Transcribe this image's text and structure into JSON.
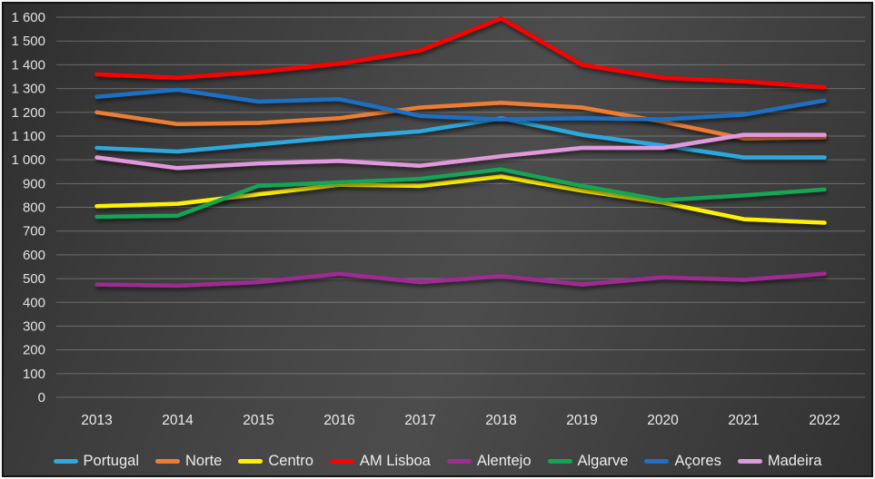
{
  "chart_data": {
    "type": "line",
    "title": "",
    "xlabel": "",
    "ylabel": "",
    "categories": [
      "2013",
      "2014",
      "2015",
      "2016",
      "2017",
      "2018",
      "2019",
      "2020",
      "2021",
      "2022"
    ],
    "series": [
      {
        "name": "Portugal",
        "color": "#2BA9E0",
        "values": [
          1050,
          1035,
          1065,
          1095,
          1120,
          1175,
          1105,
          1060,
          1010,
          1010
        ]
      },
      {
        "name": "Norte",
        "color": "#ED7D31",
        "values": [
          1200,
          1150,
          1155,
          1175,
          1220,
          1240,
          1220,
          1160,
          1090,
          1095
        ]
      },
      {
        "name": "Centro",
        "color": "#FFF100",
        "values": [
          805,
          815,
          855,
          895,
          890,
          930,
          870,
          820,
          750,
          735
        ]
      },
      {
        "name": "AM Lisboa",
        "color": "#FE0000",
        "values": [
          1360,
          1345,
          1370,
          1405,
          1460,
          1595,
          1400,
          1345,
          1330,
          1305
        ]
      },
      {
        "name": "Alentejo",
        "color": "#A02B93",
        "values": [
          475,
          470,
          485,
          520,
          485,
          510,
          475,
          505,
          495,
          520
        ]
      },
      {
        "name": "Algarve",
        "color": "#12A455",
        "values": [
          760,
          765,
          890,
          905,
          920,
          960,
          890,
          830,
          850,
          875
        ]
      },
      {
        "name": "Açores",
        "color": "#1F6FC4",
        "values": [
          1265,
          1295,
          1245,
          1255,
          1185,
          1170,
          1175,
          1170,
          1190,
          1250
        ]
      },
      {
        "name": "Madeira",
        "color": "#E298DC",
        "values": [
          1010,
          965,
          985,
          995,
          975,
          1015,
          1050,
          1050,
          1105,
          1105
        ]
      }
    ],
    "ylim": [
      0,
      1600
    ],
    "ytick_step": 100,
    "y_tick_labels": [
      "0",
      "100",
      "200",
      "300",
      "400",
      "500",
      "600",
      "700",
      "800",
      "900",
      "1 000",
      "1 100",
      "1 200",
      "1 300",
      "1 400",
      "1 500",
      "1 600"
    ],
    "grid": "horizontal",
    "legend_position": "bottom",
    "colors": {
      "background": "#414141",
      "text": "#ececec",
      "gridline": "#757575",
      "frame_outer": "#f5f5f5",
      "frame_inner": "#141414"
    }
  }
}
